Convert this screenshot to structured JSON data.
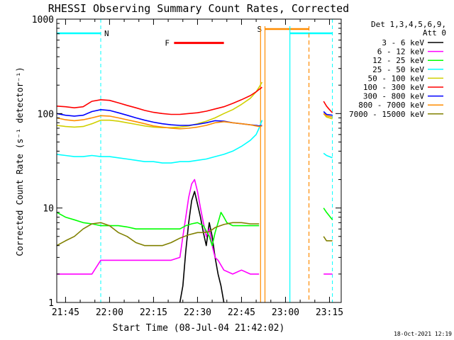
{
  "chart_data": {
    "type": "line",
    "title": "RHESSI Observing Summary Count Rates, Corrected",
    "xlabel": "Start Time (08-Jul-04 21:42:02)",
    "ylabel": "Corrected Count Rate (s⁻¹ detector⁻¹)",
    "y_scale": "log",
    "ylim": [
      1,
      1000
    ],
    "xlim_minutes": [
      0,
      97
    ],
    "x_ticks": [
      {
        "label": "21:45",
        "t": 3
      },
      {
        "label": "22:00",
        "t": 18
      },
      {
        "label": "22:15",
        "t": 33
      },
      {
        "label": "22:30",
        "t": 48
      },
      {
        "label": "22:45",
        "t": 63
      },
      {
        "label": "23:00",
        "t": 78
      },
      {
        "label": "23:15",
        "t": 93
      }
    ],
    "y_ticks": [
      {
        "label": "1",
        "v": 1
      },
      {
        "label": "10",
        "v": 10
      },
      {
        "label": "100",
        "v": 100
      },
      {
        "label": "1000",
        "v": 1000
      }
    ],
    "legend": {
      "header": [
        "Det 1,3,4,5,6,9,",
        "Att 0"
      ],
      "position": "right"
    },
    "series": [
      {
        "name": "3 - 6 keV",
        "color": "#000000",
        "points": [
          [
            42,
            1
          ],
          [
            43,
            1.5
          ],
          [
            44,
            3.5
          ],
          [
            45,
            7
          ],
          [
            46,
            12
          ],
          [
            47,
            15
          ],
          [
            48,
            11
          ],
          [
            49,
            8
          ],
          [
            50,
            5.5
          ],
          [
            51,
            4
          ],
          [
            52,
            7
          ],
          [
            53,
            5
          ],
          [
            54,
            3
          ],
          [
            55,
            2
          ],
          [
            56,
            1.5
          ],
          [
            57,
            1
          ]
        ]
      },
      {
        "name": "6 - 12 keV",
        "color": "#ff00ff",
        "points": [
          [
            0,
            2
          ],
          [
            3,
            2
          ],
          [
            6,
            2
          ],
          [
            9,
            2
          ],
          [
            12,
            2
          ],
          [
            15,
            2.8
          ],
          [
            18,
            2.8
          ],
          [
            21,
            2.8
          ],
          [
            24,
            2.8
          ],
          [
            27,
            2.8
          ],
          [
            30,
            2.8
          ],
          [
            33,
            2.8
          ],
          [
            36,
            2.8
          ],
          [
            39,
            2.8
          ],
          [
            42,
            3
          ],
          [
            43,
            5
          ],
          [
            44,
            8
          ],
          [
            45,
            13
          ],
          [
            46,
            18
          ],
          [
            47,
            20
          ],
          [
            48,
            15
          ],
          [
            49,
            10
          ],
          [
            50,
            7
          ],
          [
            51,
            5
          ],
          [
            52,
            6
          ],
          [
            53,
            4
          ],
          [
            54,
            3
          ],
          [
            55,
            2.8
          ],
          [
            57,
            2.2
          ],
          [
            60,
            2
          ],
          [
            63,
            2.2
          ],
          [
            66,
            2
          ],
          [
            69,
            2
          ],
          [
            91,
            2
          ],
          [
            94,
            2
          ]
        ]
      },
      {
        "name": "12 - 25 keV",
        "color": "#00ff00",
        "points": [
          [
            0,
            9
          ],
          [
            3,
            8
          ],
          [
            6,
            7.5
          ],
          [
            9,
            7
          ],
          [
            12,
            6.8
          ],
          [
            15,
            6.5
          ],
          [
            18,
            6.5
          ],
          [
            21,
            6.5
          ],
          [
            24,
            6.3
          ],
          [
            27,
            6
          ],
          [
            30,
            6
          ],
          [
            33,
            6
          ],
          [
            36,
            6
          ],
          [
            39,
            6
          ],
          [
            42,
            6
          ],
          [
            44,
            6.5
          ],
          [
            46,
            6.8
          ],
          [
            48,
            7
          ],
          [
            50,
            6.5
          ],
          [
            52,
            5
          ],
          [
            53,
            4
          ],
          [
            54,
            5.5
          ],
          [
            55,
            7
          ],
          [
            56,
            9
          ],
          [
            57,
            8
          ],
          [
            58,
            7
          ],
          [
            60,
            6.5
          ],
          [
            63,
            6.5
          ],
          [
            66,
            6.5
          ],
          [
            69,
            6.5
          ],
          [
            91,
            10
          ],
          [
            92,
            9
          ],
          [
            94,
            7.5
          ]
        ]
      },
      {
        "name": "25 - 50 keV",
        "color": "#00ffff",
        "points": [
          [
            0,
            37
          ],
          [
            3,
            36
          ],
          [
            6,
            35
          ],
          [
            9,
            35
          ],
          [
            12,
            36
          ],
          [
            15,
            35
          ],
          [
            18,
            35
          ],
          [
            21,
            34
          ],
          [
            24,
            33
          ],
          [
            27,
            32
          ],
          [
            30,
            31
          ],
          [
            33,
            31
          ],
          [
            36,
            30
          ],
          [
            39,
            30
          ],
          [
            42,
            31
          ],
          [
            45,
            31
          ],
          [
            48,
            32
          ],
          [
            51,
            33
          ],
          [
            54,
            35
          ],
          [
            57,
            37
          ],
          [
            60,
            40
          ],
          [
            63,
            45
          ],
          [
            66,
            52
          ],
          [
            68,
            60
          ],
          [
            69,
            70
          ],
          [
            70,
            85
          ],
          [
            91,
            38
          ],
          [
            92,
            36
          ],
          [
            94,
            34
          ]
        ]
      },
      {
        "name": "50 - 100 keV",
        "color": "#d0d000",
        "points": [
          [
            0,
            75
          ],
          [
            3,
            73
          ],
          [
            6,
            72
          ],
          [
            9,
            73
          ],
          [
            12,
            78
          ],
          [
            15,
            85
          ],
          [
            18,
            85
          ],
          [
            21,
            83
          ],
          [
            24,
            80
          ],
          [
            27,
            77
          ],
          [
            30,
            74
          ],
          [
            33,
            72
          ],
          [
            36,
            71
          ],
          [
            39,
            71
          ],
          [
            42,
            72
          ],
          [
            45,
            74
          ],
          [
            48,
            78
          ],
          [
            51,
            83
          ],
          [
            54,
            90
          ],
          [
            57,
            100
          ],
          [
            60,
            110
          ],
          [
            63,
            125
          ],
          [
            66,
            145
          ],
          [
            68,
            170
          ],
          [
            69,
            190
          ],
          [
            70,
            215
          ],
          [
            91,
            100
          ],
          [
            92,
            92
          ],
          [
            94,
            88
          ]
        ]
      },
      {
        "name": "100 - 300 keV",
        "color": "#ff0000",
        "points": [
          [
            0,
            120
          ],
          [
            3,
            118
          ],
          [
            6,
            115
          ],
          [
            9,
            118
          ],
          [
            12,
            135
          ],
          [
            15,
            140
          ],
          [
            18,
            138
          ],
          [
            21,
            130
          ],
          [
            24,
            122
          ],
          [
            27,
            115
          ],
          [
            30,
            108
          ],
          [
            33,
            103
          ],
          [
            36,
            100
          ],
          [
            39,
            98
          ],
          [
            42,
            98
          ],
          [
            45,
            100
          ],
          [
            48,
            102
          ],
          [
            51,
            106
          ],
          [
            54,
            112
          ],
          [
            57,
            118
          ],
          [
            60,
            128
          ],
          [
            63,
            140
          ],
          [
            66,
            155
          ],
          [
            68,
            170
          ],
          [
            69,
            180
          ],
          [
            70,
            190
          ],
          [
            91,
            135
          ],
          [
            92,
            120
          ],
          [
            93,
            110
          ],
          [
            94,
            102
          ]
        ]
      },
      {
        "name": "300 - 800 keV",
        "color": "#0000ff",
        "points": [
          [
            0,
            100
          ],
          [
            3,
            96
          ],
          [
            6,
            94
          ],
          [
            9,
            96
          ],
          [
            12,
            105
          ],
          [
            15,
            110
          ],
          [
            18,
            108
          ],
          [
            21,
            102
          ],
          [
            24,
            96
          ],
          [
            27,
            90
          ],
          [
            30,
            85
          ],
          [
            33,
            81
          ],
          [
            36,
            78
          ],
          [
            39,
            76
          ],
          [
            42,
            75
          ],
          [
            45,
            75
          ],
          [
            48,
            77
          ],
          [
            51,
            80
          ],
          [
            54,
            84
          ],
          [
            57,
            83
          ],
          [
            60,
            80
          ],
          [
            63,
            78
          ],
          [
            66,
            76
          ],
          [
            68,
            75
          ],
          [
            69,
            74
          ],
          [
            70,
            75
          ],
          [
            91,
            105
          ],
          [
            92,
            98
          ],
          [
            94,
            96
          ]
        ]
      },
      {
        "name": "800 - 7000 keV",
        "color": "#ff8c00",
        "points": [
          [
            0,
            90
          ],
          [
            3,
            86
          ],
          [
            6,
            84
          ],
          [
            9,
            86
          ],
          [
            12,
            90
          ],
          [
            15,
            95
          ],
          [
            18,
            94
          ],
          [
            21,
            90
          ],
          [
            24,
            86
          ],
          [
            27,
            82
          ],
          [
            30,
            78
          ],
          [
            33,
            74
          ],
          [
            36,
            72
          ],
          [
            39,
            70
          ],
          [
            42,
            69
          ],
          [
            45,
            70
          ],
          [
            48,
            72
          ],
          [
            51,
            75
          ],
          [
            54,
            80
          ],
          [
            57,
            82
          ],
          [
            60,
            80
          ],
          [
            63,
            78
          ],
          [
            66,
            76
          ],
          [
            68,
            74
          ],
          [
            69,
            73
          ],
          [
            70,
            74
          ],
          [
            91,
            100
          ],
          [
            92,
            95
          ],
          [
            94,
            92
          ]
        ]
      },
      {
        "name": "7000 - 15000 keV",
        "color": "#808000",
        "points": [
          [
            0,
            4
          ],
          [
            3,
            4.5
          ],
          [
            6,
            5
          ],
          [
            9,
            6
          ],
          [
            12,
            6.8
          ],
          [
            15,
            7
          ],
          [
            18,
            6.5
          ],
          [
            21,
            5.5
          ],
          [
            24,
            5
          ],
          [
            27,
            4.3
          ],
          [
            30,
            4
          ],
          [
            33,
            4
          ],
          [
            36,
            4
          ],
          [
            39,
            4.3
          ],
          [
            42,
            4.8
          ],
          [
            45,
            5.2
          ],
          [
            48,
            5.5
          ],
          [
            50,
            5.5
          ],
          [
            52,
            5.6
          ],
          [
            54,
            6.2
          ],
          [
            57,
            6.7
          ],
          [
            60,
            7
          ],
          [
            63,
            7
          ],
          [
            66,
            6.8
          ],
          [
            69,
            6.8
          ],
          [
            91,
            5
          ],
          [
            92,
            4.5
          ],
          [
            94,
            4.5
          ]
        ]
      }
    ],
    "annotations": {
      "night": {
        "label": "N",
        "color": "#00ffff",
        "intervals": [
          [
            0,
            15
          ],
          [
            79.5,
            94
          ]
        ]
      },
      "flare": {
        "label": "F",
        "color": "#ff0000",
        "interval": [
          40,
          57
        ],
        "level": 560
      },
      "saa": {
        "label": "S",
        "color": "#ff8c00",
        "intervals": [
          [
            71,
            86
          ]
        ]
      },
      "night_edges": {
        "color": "#00ffff",
        "times": [
          15,
          94
        ]
      },
      "data_gap_edges": {
        "solid": [
          [
            69.5,
            "#ff8c00"
          ],
          [
            71,
            "#ff8c00"
          ],
          [
            79.5,
            "#00ffff"
          ]
        ],
        "dashed": [
          [
            86,
            "#ff8c00"
          ]
        ]
      }
    },
    "grid": false,
    "timestamp": "18-Oct-2021 12:19"
  }
}
